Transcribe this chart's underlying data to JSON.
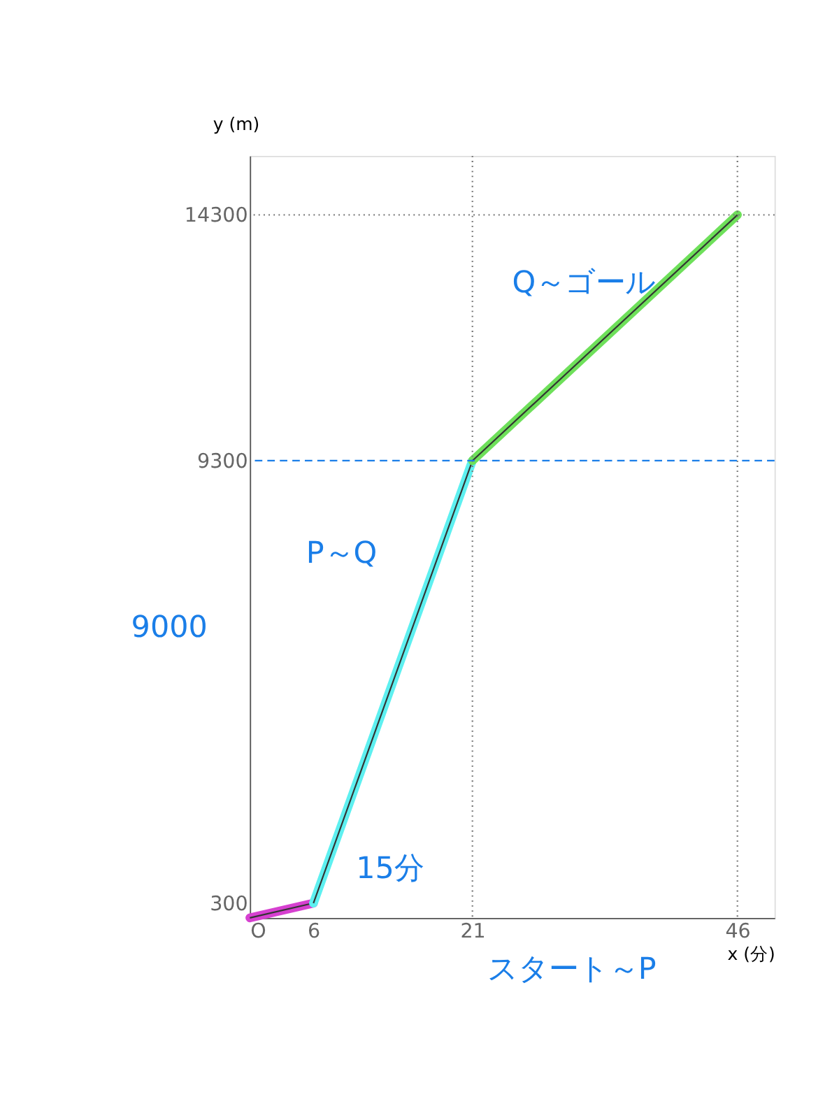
{
  "chart_data": {
    "type": "line",
    "xlabel": "x (分)",
    "ylabel": "y (m)",
    "series": [
      {
        "x": [
          0,
          6
        ],
        "values": [
          0,
          300
        ],
        "color": "#d640d0"
      },
      {
        "x": [
          6,
          21
        ],
        "values": [
          300,
          9300
        ],
        "color": "#5ef0f0"
      },
      {
        "x": [
          21,
          46
        ],
        "values": [
          9300,
          14300
        ],
        "color": "#6ee05a"
      }
    ],
    "xlim": [
      0,
      49.5
    ],
    "ylim": [
      0,
      15500
    ],
    "xticks": [
      {
        "value": 0,
        "label": "O"
      },
      6,
      21,
      46
    ],
    "yticks": [
      300,
      9300,
      14300
    ],
    "ref_lines": [
      {
        "axis": "y",
        "value": 14300,
        "color": "#777777",
        "line_style": "dotted"
      },
      {
        "axis": "x",
        "value": 46,
        "color": "#777777",
        "line_style": "dotted"
      },
      {
        "axis": "x",
        "value": 21,
        "color": "#777777",
        "line_style": "dotted"
      },
      {
        "axis": "y",
        "value": 9300,
        "color": "#1a7ee8",
        "line_style": "dashed"
      }
    ],
    "annotations": [
      "Q～ゴール",
      "P～Q",
      "15分",
      "9000",
      "スタート～P"
    ],
    "grid": false,
    "marker": "none",
    "line_style": "solid"
  }
}
